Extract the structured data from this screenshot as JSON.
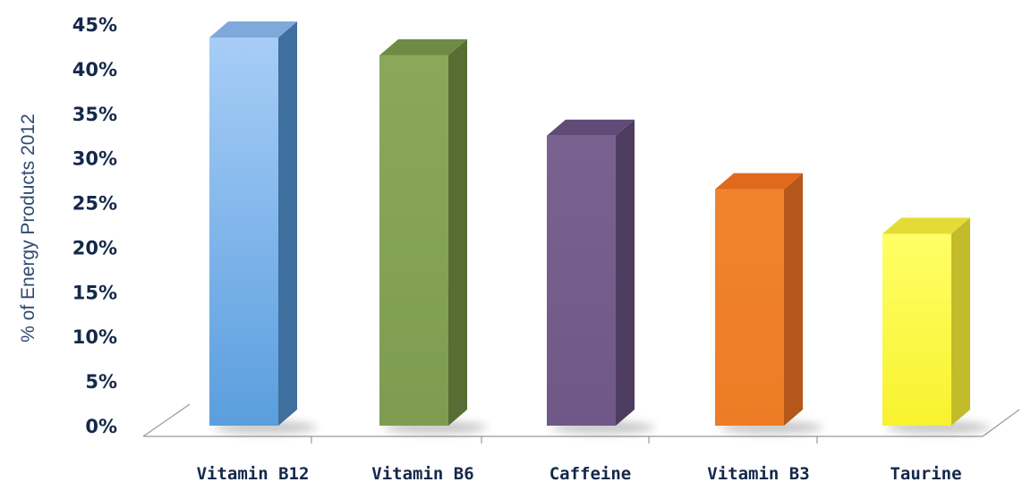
{
  "chart_data": {
    "type": "bar",
    "title": "",
    "xlabel": "",
    "ylabel": "% of Energy Products 2012",
    "categories": [
      "Vitamin B12",
      "Vitamin B6",
      "Caffeine",
      "Vitamin B3",
      "Taurine"
    ],
    "values": [
      43.5,
      41.5,
      32.5,
      26.5,
      21.5
    ],
    "ylim": [
      0,
      45
    ],
    "yticks": [
      "0%",
      "5%",
      "10%",
      "15%",
      "20%",
      "25%",
      "30%",
      "35%",
      "40%",
      "45%"
    ],
    "grid": false,
    "legend": "none",
    "colors": [
      {
        "top": "#a7cdf7",
        "bottom": "#5a9ede",
        "side": "#3f6f9f",
        "cap": "#7fa9db"
      },
      {
        "top": "#8ba85a",
        "bottom": "#7e9c4f",
        "side": "#566d34",
        "cap": "#6e8a44"
      },
      {
        "top": "#7a6290",
        "bottom": "#6f5887",
        "side": "#4d3c60",
        "cap": "#604b77"
      },
      {
        "top": "#f0842e",
        "bottom": "#ee7c25",
        "side": "#b5561a",
        "cap": "#e0691e"
      },
      {
        "top": "#ffff66",
        "bottom": "#f8f22e",
        "side": "#c2bb2a",
        "cap": "#e4dc36"
      }
    ]
  }
}
